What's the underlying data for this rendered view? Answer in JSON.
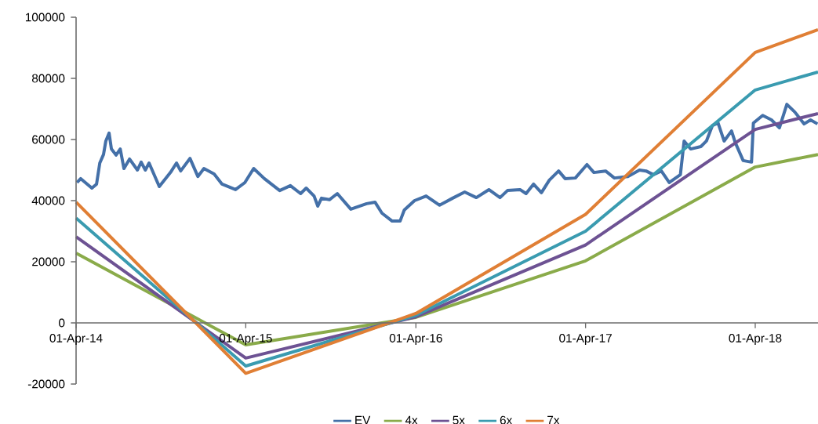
{
  "chart_data": {
    "type": "line",
    "xlim": [
      "2014-04-01",
      "2018-08-14"
    ],
    "ylim": [
      -20000,
      100000
    ],
    "xticks": [
      {
        "value": "2014-04-01",
        "label": "01-Apr-14"
      },
      {
        "value": "2015-04-01",
        "label": "01-Apr-15"
      },
      {
        "value": "2016-04-01",
        "label": "01-Apr-16"
      },
      {
        "value": "2017-04-01",
        "label": "01-Apr-17"
      },
      {
        "value": "2018-04-01",
        "label": "01-Apr-18"
      }
    ],
    "yticks": [
      -20000,
      0,
      20000,
      40000,
      60000,
      80000,
      100000
    ],
    "legend": "bottom",
    "series": [
      {
        "name": "EV",
        "color": "#4470a8",
        "x": [
          "2014-04-03",
          "2014-04-11",
          "2014-05-05",
          "2014-05-15",
          "2014-05-22",
          "2014-05-30",
          "2014-06-04",
          "2014-06-11",
          "2014-06-16",
          "2014-06-26",
          "2014-07-05",
          "2014-07-13",
          "2014-07-25",
          "2014-08-11",
          "2014-08-19",
          "2014-08-28",
          "2014-09-05",
          "2014-09-27",
          "2014-10-21",
          "2014-11-03",
          "2014-11-12",
          "2014-12-02",
          "2014-12-19",
          "2015-01-01",
          "2015-01-23",
          "2015-02-09",
          "2015-03-10",
          "2015-03-30",
          "2015-04-18",
          "2015-05-11",
          "2015-06-13",
          "2015-07-06",
          "2015-07-28",
          "2015-08-09",
          "2015-08-26",
          "2015-09-03",
          "2015-09-11",
          "2015-09-28",
          "2015-10-15",
          "2015-11-13",
          "2015-12-17",
          "2016-01-04",
          "2016-01-19",
          "2016-02-10",
          "2016-02-27",
          "2016-03-07",
          "2016-03-29",
          "2016-04-23",
          "2016-05-22",
          "2016-06-19",
          "2016-07-15",
          "2016-08-09",
          "2016-09-05",
          "2016-09-29",
          "2016-10-15",
          "2016-11-11",
          "2016-11-24",
          "2016-12-10",
          "2016-12-27",
          "2017-01-13",
          "2017-02-02",
          "2017-02-16",
          "2017-03-10",
          "2017-04-04",
          "2017-04-19",
          "2017-05-14",
          "2017-06-02",
          "2017-07-01",
          "2017-07-26",
          "2017-08-09",
          "2017-08-25",
          "2017-09-11",
          "2017-09-28",
          "2017-10-22",
          "2017-10-30",
          "2017-11-13",
          "2017-12-05",
          "2017-12-17",
          "2017-12-30",
          "2018-01-11",
          "2018-01-24",
          "2018-02-09",
          "2018-02-17",
          "2018-03-06",
          "2018-03-24",
          "2018-03-28",
          "2018-04-17",
          "2018-05-06",
          "2018-05-23",
          "2018-06-08",
          "2018-06-25",
          "2018-07-15",
          "2018-07-29",
          "2018-08-13"
        ],
        "values": [
          45900,
          47200,
          44100,
          45400,
          52300,
          55100,
          59500,
          62100,
          56900,
          54900,
          56900,
          50500,
          53600,
          50000,
          52600,
          50000,
          52300,
          44600,
          49200,
          52300,
          49700,
          53800,
          47900,
          50500,
          48700,
          45400,
          43600,
          45900,
          50500,
          47200,
          43300,
          44900,
          42300,
          44100,
          41500,
          38200,
          40800,
          40300,
          42300,
          37200,
          39000,
          39500,
          35900,
          33300,
          33300,
          36900,
          40000,
          41500,
          38500,
          40800,
          42800,
          41000,
          43600,
          41000,
          43300,
          43600,
          42300,
          45400,
          42600,
          46700,
          49700,
          47200,
          47400,
          51800,
          49200,
          49700,
          47400,
          47900,
          50000,
          49700,
          48500,
          49700,
          45900,
          48500,
          59500,
          56900,
          57700,
          59500,
          64600,
          65400,
          59500,
          62800,
          59000,
          53100,
          52600,
          65400,
          67900,
          66400,
          63800,
          71500,
          69000,
          65100,
          66400,
          65100
        ]
      },
      {
        "name": "4x",
        "color": "#8aab4a",
        "x": [
          "2014-04-01",
          "2015-04-01",
          "2016-04-01",
          "2017-04-01",
          "2018-04-01",
          "2018-08-14"
        ],
        "values": [
          22800,
          -7200,
          1800,
          20300,
          51000,
          55100
        ]
      },
      {
        "name": "5x",
        "color": "#6d5293",
        "x": [
          "2014-04-01",
          "2015-04-01",
          "2016-04-01",
          "2017-04-01",
          "2018-04-01",
          "2018-08-14"
        ],
        "values": [
          28200,
          -11500,
          2000,
          25500,
          63300,
          68500
        ]
      },
      {
        "name": "6x",
        "color": "#3a9bb0",
        "x": [
          "2014-04-01",
          "2015-04-01",
          "2016-04-01",
          "2017-04-01",
          "2018-04-01",
          "2018-08-14"
        ],
        "values": [
          34300,
          -14100,
          2500,
          30000,
          76200,
          82100
        ]
      },
      {
        "name": "7x",
        "color": "#e07f35",
        "x": [
          "2014-04-01",
          "2015-04-01",
          "2016-04-01",
          "2017-04-01",
          "2018-04-01",
          "2018-08-14"
        ],
        "values": [
          39500,
          -16500,
          3100,
          35500,
          88500,
          95900
        ]
      }
    ]
  }
}
